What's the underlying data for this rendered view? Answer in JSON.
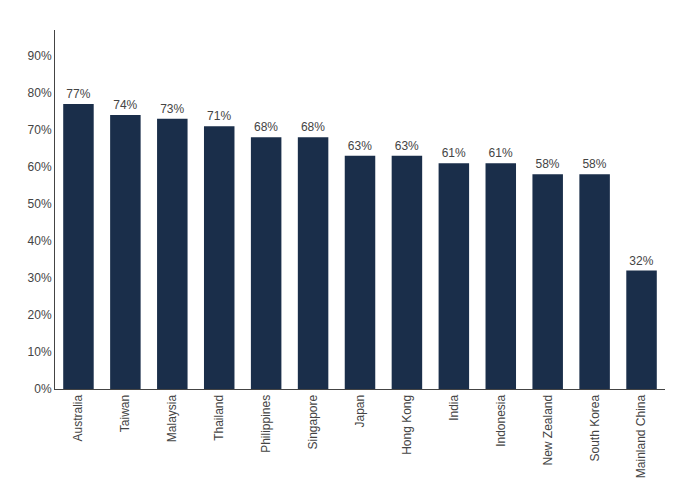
{
  "chart_data": {
    "type": "bar",
    "categories": [
      "Australia",
      "Taiwan",
      "Malaysia",
      "Thailand",
      "Philippines",
      "Singapore",
      "Japan",
      "Hong Kong",
      "India",
      "Indonesia",
      "New Zealand",
      "South Korea",
      "Mainland China"
    ],
    "values": [
      0.77,
      0.74,
      0.73,
      0.71,
      0.68,
      0.68,
      0.63,
      0.63,
      0.61,
      0.61,
      0.58,
      0.58,
      0.32
    ],
    "value_labels": [
      "77%",
      "74%",
      "73%",
      "71%",
      "68%",
      "68%",
      "63%",
      "63%",
      "61%",
      "61%",
      "58%",
      "58%",
      "32%"
    ],
    "color": "#1a2e4a",
    "ylim": [
      0,
      0.97
    ],
    "yticks": [
      {
        "value": 0,
        "label": "0%"
      },
      {
        "value": 0.1,
        "label": "10%"
      },
      {
        "value": 0.2,
        "label": "20%"
      },
      {
        "value": 0.3,
        "label": "30%"
      },
      {
        "value": 0.4,
        "label": "40%"
      },
      {
        "value": 0.5,
        "label": "50%"
      },
      {
        "value": 0.6,
        "label": "60%"
      },
      {
        "value": 0.7,
        "label": "70%"
      },
      {
        "value": 0.8,
        "label": "80%"
      },
      {
        "value": 0.9,
        "label": "90%"
      }
    ],
    "grid": false,
    "data_labels": true
  }
}
